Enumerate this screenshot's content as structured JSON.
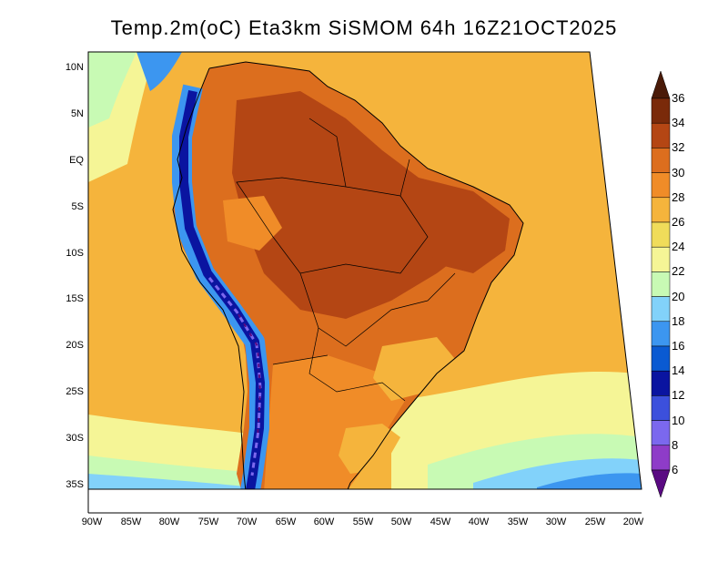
{
  "title": "Temp.2m(oC)  Eta3km  SiSMOM  64h  16Z21OCT2025",
  "map": {
    "lat_labels": [
      "10N",
      "5N",
      "EQ",
      "5S",
      "10S",
      "15S",
      "20S",
      "25S",
      "30S",
      "35S"
    ],
    "lon_labels": [
      "90W",
      "85W",
      "80W",
      "75W",
      "70W",
      "65W",
      "60W",
      "55W",
      "50W",
      "45W",
      "40W",
      "35W",
      "30W",
      "25W",
      "20W"
    ]
  },
  "colorbar": {
    "labels": [
      "6",
      "8",
      "10",
      "12",
      "14",
      "16",
      "18",
      "20",
      "22",
      "24",
      "26",
      "28",
      "30",
      "32",
      "34",
      "36"
    ],
    "colors": [
      "#5a0a82",
      "#8e3cc8",
      "#7b68ee",
      "#3c50dc",
      "#0a14a0",
      "#0a5ad2",
      "#3c96f0",
      "#82d2fa",
      "#c8fab4",
      "#f5f596",
      "#f0dc5a",
      "#f5b43c",
      "#f08c28",
      "#dc6e1e",
      "#b44614",
      "#7a2a0a",
      "#4a1a08"
    ]
  },
  "colors": {
    "ocean_base": "#f5b43c",
    "land_hot": "#dc6e1e",
    "andes": "#0a14a0"
  }
}
